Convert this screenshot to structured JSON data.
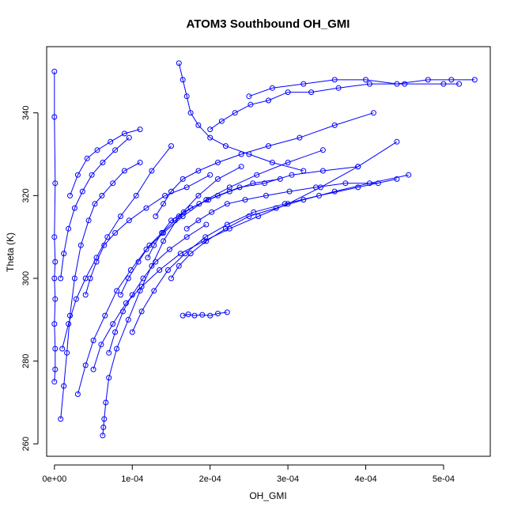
{
  "chart_data": {
    "type": "scatter",
    "title": "ATOM3 Southbound OH_GMI",
    "xlabel": "OH_GMI",
    "ylabel": "Theta (K)",
    "xlim": [
      -1e-05,
      0.00056
    ],
    "ylim": [
      257,
      356
    ],
    "x_ticks": [
      0,
      0.0001,
      0.0002,
      0.0003,
      0.0004,
      0.0005
    ],
    "x_tick_labels": [
      "0e+00",
      "1e-04",
      "2e-04",
      "3e-04",
      "4e-04",
      "5e-04"
    ],
    "y_ticks": [
      260,
      280,
      300,
      320,
      340
    ],
    "y_tick_labels": [
      "260",
      "280",
      "300",
      "320",
      "340"
    ],
    "grid": false,
    "legend": "none",
    "marker": "open-circle",
    "line_connected": true,
    "colors": {
      "series": "#0000ff",
      "axes": "#000000",
      "background": "#ffffff"
    },
    "series": [
      {
        "x": [
          0.0,
          1e-06,
          1e-06,
          0.0,
          1e-06,
          0.0,
          1e-06,
          0.0,
          1e-06,
          0.0,
          0.0
        ],
        "y": [
          275,
          278,
          283,
          289,
          295,
          300,
          304,
          310,
          323,
          339,
          350
        ]
      },
      {
        "x": [
          8e-06,
          1.2e-05,
          1.6e-05,
          2e-05,
          2.6e-05,
          3.4e-05,
          4.4e-05,
          5.2e-05,
          6.1e-05,
          7.5e-05,
          9e-05,
          0.00011
        ],
        "y": [
          266,
          274,
          282,
          291,
          300,
          308,
          314,
          318,
          320,
          323,
          326,
          328
        ]
      },
      {
        "x": [
          6.2e-05,
          6.3e-05,
          6.4e-05,
          6.6e-05,
          7e-05,
          8e-05,
          9.5e-05,
          0.00011,
          0.000125,
          0.00014,
          0.00016,
          0.000185,
          0.00021,
          0.00024
        ],
        "y": [
          262,
          264,
          266,
          270,
          276,
          283,
          290,
          297,
          303,
          309,
          315,
          320,
          324,
          327
        ]
      },
      {
        "x": [
          1e-05,
          1.8e-05,
          2.8e-05,
          4e-05,
          5.4e-05,
          6.8e-05,
          8.5e-05,
          0.000105,
          0.000125,
          0.00015
        ],
        "y": [
          283,
          289,
          295,
          300,
          305,
          310,
          315,
          320,
          326,
          332
        ]
      },
      {
        "x": [
          3e-05,
          4e-05,
          5e-05,
          6.5e-05,
          8e-05,
          9.8e-05,
          0.000118,
          0.00014,
          0.000165,
          0.000195,
          0.000225,
          0.00026,
          0.0003,
          0.000345
        ],
        "y": [
          272,
          279,
          285,
          291,
          297,
          302,
          307,
          311,
          315,
          319,
          322,
          325,
          328,
          331
        ]
      },
      {
        "x": [
          0.0001,
          0.000112,
          0.000128,
          0.000146,
          0.000168,
          0.000194,
          0.000222,
          0.000256,
          0.000296,
          0.00034,
          0.00039,
          0.00044
        ],
        "y": [
          287,
          292,
          297,
          302,
          306,
          310,
          313,
          316,
          318,
          320,
          322,
          324
        ]
      },
      {
        "x": [
          0.00016,
          0.000165,
          0.00017,
          0.000175,
          0.000185,
          0.0002,
          0.00022,
          0.00025,
          0.00028,
          0.00032
        ],
        "y": [
          352,
          348,
          344,
          340,
          337,
          334,
          332,
          330,
          328,
          326
        ]
      },
      {
        "x": [
          0.000165,
          0.000172,
          0.00018,
          0.00019,
          0.0002,
          0.00021,
          0.000222
        ],
        "y": [
          291,
          291.3,
          291,
          291.2,
          291,
          291.5,
          291.8
        ]
      },
      {
        "x": [
          0.00025,
          0.00028,
          0.00032,
          0.00036,
          0.0004,
          0.00044,
          0.00048,
          0.00051,
          0.00054
        ],
        "y": [
          344,
          346,
          347,
          348,
          348,
          347,
          348,
          348,
          348
        ]
      },
      {
        "x": [
          0.00015,
          0.00016,
          0.000175,
          0.000195,
          0.00022,
          0.00025,
          0.000285,
          0.00032,
          0.00036,
          0.000405,
          0.000455
        ],
        "y": [
          300,
          303,
          306,
          309,
          312,
          315,
          317,
          319,
          321,
          323,
          325
        ]
      },
      {
        "x": [
          5e-05,
          6e-05,
          7.5e-05,
          9.2e-05,
          0.000112,
          0.000135,
          0.000162,
          0.000192,
          0.000225,
          0.000262,
          0.0003,
          0.000342,
          0.00039,
          0.00044
        ],
        "y": [
          278,
          284,
          289,
          294,
          298,
          302,
          306,
          309,
          312,
          315,
          318,
          322,
          327,
          333
        ]
      },
      {
        "x": [
          2e-05,
          3e-05,
          4.2e-05,
          5.5e-05,
          7.2e-05,
          9e-05,
          0.00011
        ],
        "y": [
          320,
          325,
          329,
          331,
          333,
          335,
          336
        ]
      },
      {
        "x": [
          0.00013,
          0.00014,
          0.00015,
          0.000165,
          0.000185,
          0.00021,
          0.00024,
          0.000275,
          0.000315,
          0.00036,
          0.00041
        ],
        "y": [
          315,
          318,
          321,
          324,
          326,
          328,
          330,
          332,
          334,
          337,
          340
        ]
      },
      {
        "x": [
          8.5e-05,
          9.5e-05,
          0.000108,
          0.000122,
          0.000138,
          0.000155,
          0.000175,
          0.000198,
          0.000225,
          0.000255,
          0.00029
        ],
        "y": [
          296,
          300,
          304,
          308,
          311,
          314,
          317,
          319,
          321,
          323,
          324
        ]
      },
      {
        "x": [
          0.0002,
          0.000215,
          0.000232,
          0.000252,
          0.000275,
          0.0003,
          0.00033,
          0.000365,
          0.000405,
          0.00045,
          0.0005,
          0.00052
        ],
        "y": [
          336,
          338,
          340,
          342,
          343,
          345,
          345,
          346,
          347,
          347,
          347,
          347
        ]
      },
      {
        "x": [
          4e-05,
          4.6e-05,
          5.4e-05,
          6.4e-05,
          7.8e-05,
          9.6e-05,
          0.000118,
          0.000142,
          0.00017,
          0.0002
        ],
        "y": [
          296,
          300,
          304,
          308,
          311,
          314,
          317,
          320,
          322,
          325
        ]
      },
      {
        "x": [
          0.00012,
          0.000128,
          0.000138,
          0.00015,
          0.000166,
          0.000186,
          0.00021,
          0.000238,
          0.00027,
          0.000305,
          0.000345,
          0.00039
        ],
        "y": [
          305,
          308,
          311,
          314,
          316,
          318,
          320,
          322,
          323,
          325,
          326,
          327
        ]
      },
      {
        "x": [
          7e-05,
          7.8e-05,
          8.8e-05,
          0.0001,
          0.000114,
          0.00013,
          0.000148,
          0.00017,
          0.000195
        ],
        "y": [
          282,
          287,
          292,
          296,
          300,
          304,
          307,
          310,
          313
        ]
      },
      {
        "x": [
          0.00017,
          0.000185,
          0.000202,
          0.000222,
          0.000245,
          0.000272,
          0.000302,
          0.000336,
          0.000374,
          0.000416
        ],
        "y": [
          312,
          314,
          316,
          318,
          319,
          320,
          321,
          322,
          323,
          323
        ]
      },
      {
        "x": [
          8e-06,
          1.2e-05,
          1.8e-05,
          2.6e-05,
          3.6e-05,
          4.8e-05,
          6.2e-05,
          7.8e-05,
          9.6e-05
        ],
        "y": [
          300,
          306,
          312,
          317,
          321,
          325,
          328,
          331,
          334
        ]
      }
    ]
  }
}
